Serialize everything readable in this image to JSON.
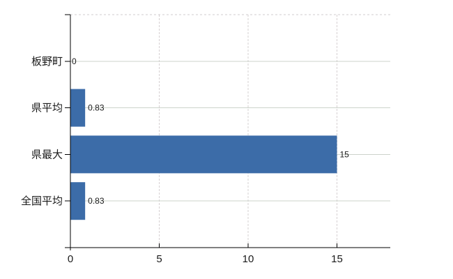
{
  "chart_data": {
    "type": "bar",
    "orientation": "horizontal",
    "title": "",
    "categories": [
      "板野町",
      "県平均",
      "県最大",
      "全国平均"
    ],
    "values": [
      0,
      0.83,
      15,
      0.83
    ],
    "value_labels": [
      "0",
      "0.83",
      "15",
      "0.83"
    ],
    "x_ticks": [
      0,
      5,
      10,
      15
    ],
    "x_tick_labels": [
      "0",
      "5",
      "10",
      "15"
    ],
    "xlim": [
      0,
      18
    ],
    "grid": true,
    "legend": false,
    "colors": {
      "bar": "#3c6ca8",
      "h_gridline": "#ccd3cb",
      "v_gridline": "#d6d0d2",
      "top_border": "#d2cccf",
      "axis": "#000000",
      "text": "#1a1a1a",
      "background": "#ffffff"
    }
  }
}
